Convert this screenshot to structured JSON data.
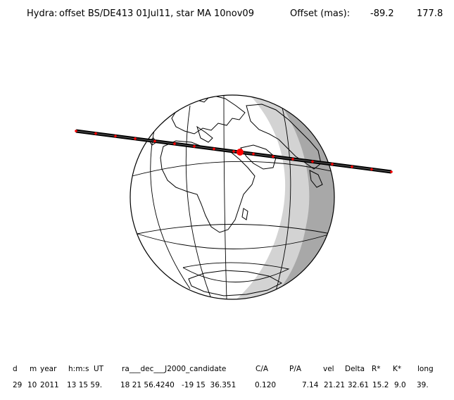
{
  "header": {
    "object": "Hydra:",
    "offset_desc": "offset BS/DE413 01Jul11, star MA 10nov09",
    "offset_label": "Offset (mas):",
    "offset_ra": "-89.2",
    "offset_dec": "177.8"
  },
  "table": {
    "columns": [
      "d",
      "m",
      "year",
      "h:m:s",
      "UT",
      "ra___dec___J2000_candidate",
      "C/A",
      "P/A",
      "vel",
      "Delta",
      "R*",
      "K*",
      "long"
    ],
    "values": [
      "29",
      "10",
      "2011",
      "13 15 59.",
      "18 21 56.4240",
      "-19 15  36.351",
      "0.120",
      "7.14",
      "21.21",
      "32.61",
      "15.2",
      "9.0",
      "39."
    ]
  },
  "colors": {
    "night": "#a8a8a8",
    "twilight": "#d3d3d3",
    "track": "#000000",
    "chord_dots": "#ff0000",
    "closest_approach": "#ff0000"
  }
}
